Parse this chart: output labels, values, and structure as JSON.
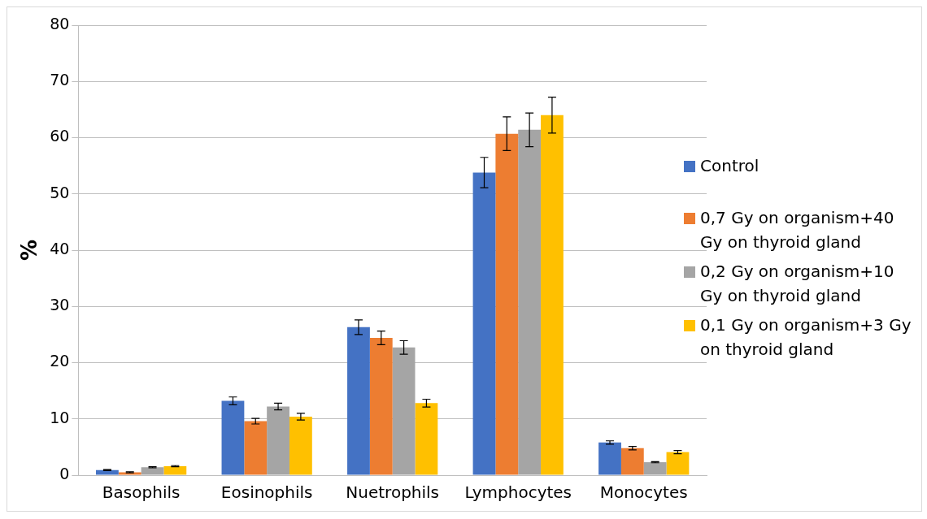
{
  "chart_data": {
    "type": "bar",
    "ylabel": "%",
    "categories": [
      "Basophils",
      "Eosinophils",
      "Nuetrophils",
      "Lymphocytes",
      "Monocytes"
    ],
    "series": [
      {
        "name": "Control",
        "color": "#4472c4",
        "values": [
          0.9,
          13.2,
          26.3,
          53.8,
          5.8
        ],
        "errors": [
          0.1,
          0.7,
          1.3,
          2.7,
          0.3
        ]
      },
      {
        "name": "0,7 Gy on organism+40 Gy on thyroid gland",
        "color": "#ed7d31",
        "values": [
          0.5,
          9.6,
          24.4,
          60.7,
          4.8
        ],
        "errors": [
          0.1,
          0.5,
          1.2,
          3.0,
          0.3
        ]
      },
      {
        "name": "0,2 Gy on organism+10 Gy on thyroid gland",
        "color": "#a5a5a5",
        "values": [
          1.4,
          12.2,
          22.7,
          61.4,
          2.3
        ],
        "errors": [
          0.1,
          0.6,
          1.2,
          3.0,
          0.1
        ]
      },
      {
        "name": "0,1 Gy on organism+3 Gy on thyroid gland",
        "color": "#ffc000",
        "values": [
          1.6,
          10.4,
          12.8,
          64.0,
          4.1
        ],
        "errors": [
          0.1,
          0.6,
          0.7,
          3.2,
          0.3
        ]
      }
    ],
    "ylim": [
      0,
      80
    ],
    "yticks": [
      0,
      10,
      20,
      30,
      40,
      50,
      60,
      70,
      80
    ],
    "grid": "y",
    "legend": "right"
  }
}
